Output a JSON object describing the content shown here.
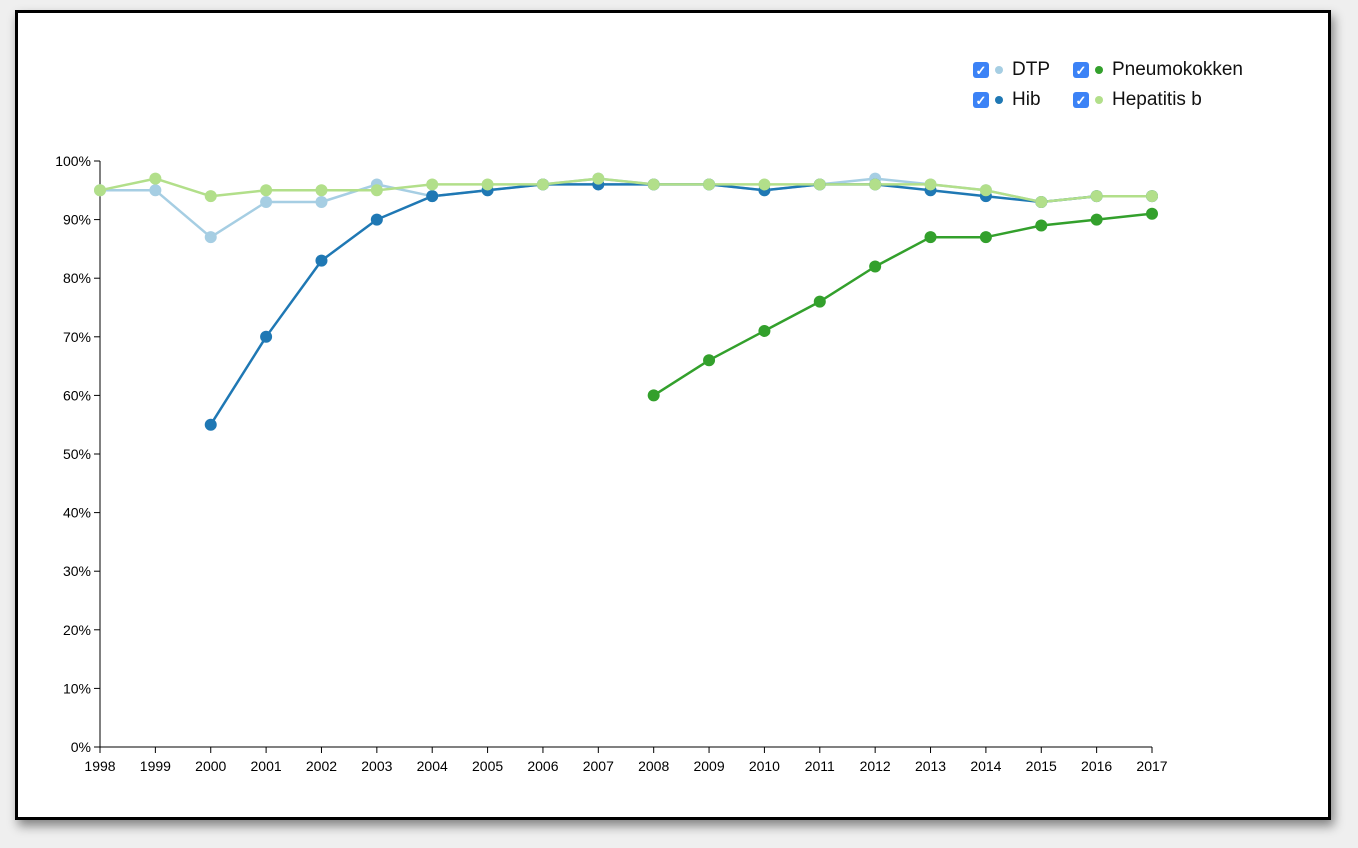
{
  "chart_data": {
    "type": "line",
    "title": "",
    "xlabel": "",
    "ylabel": "",
    "x": [
      1998,
      1999,
      2000,
      2001,
      2002,
      2003,
      2004,
      2005,
      2006,
      2007,
      2008,
      2009,
      2010,
      2011,
      2012,
      2013,
      2014,
      2015,
      2016,
      2017
    ],
    "xticks": [
      "1998",
      "1999",
      "2000",
      "2001",
      "2002",
      "2003",
      "2004",
      "2005",
      "2006",
      "2007",
      "2008",
      "2009",
      "2010",
      "2011",
      "2012",
      "2013",
      "2014",
      "2015",
      "2016",
      "2017"
    ],
    "ylim": [
      0,
      100
    ],
    "yticks": [
      "0%",
      "10%",
      "20%",
      "30%",
      "40%",
      "50%",
      "60%",
      "70%",
      "80%",
      "90%",
      "100%"
    ],
    "grid": false,
    "legend_position": "top-right",
    "series": [
      {
        "name": "DTP",
        "color": "#a6cee3",
        "values": [
          95,
          95,
          87,
          93,
          93,
          96,
          94,
          95,
          96,
          97,
          96,
          96,
          95,
          96,
          97,
          96,
          95,
          93,
          94,
          94
        ]
      },
      {
        "name": "Hib",
        "color": "#1f78b4",
        "values": [
          null,
          null,
          55,
          70,
          83,
          90,
          94,
          95,
          96,
          96,
          96,
          96,
          95,
          96,
          96,
          95,
          94,
          93,
          94,
          94
        ]
      },
      {
        "name": "Pneumokokken",
        "color": "#33a02c",
        "values": [
          null,
          null,
          null,
          null,
          null,
          null,
          null,
          null,
          null,
          null,
          60,
          66,
          71,
          76,
          82,
          87,
          87,
          89,
          90,
          91
        ]
      },
      {
        "name": "Hepatitis b",
        "color": "#b2df8a",
        "values": [
          95,
          97,
          94,
          95,
          95,
          95,
          96,
          96,
          96,
          97,
          96,
          96,
          96,
          96,
          96,
          96,
          95,
          93,
          94,
          94
        ]
      }
    ]
  },
  "legend": {
    "items": [
      {
        "label": "DTP",
        "color": "#a6cee3",
        "checked": true
      },
      {
        "label": "Pneumokokken",
        "color": "#33a02c",
        "checked": true
      },
      {
        "label": "Hib",
        "color": "#1f78b4",
        "checked": true
      },
      {
        "label": "Hepatitis b",
        "color": "#b2df8a",
        "checked": true
      }
    ],
    "checkbox_color": "#3b82f6",
    "check_icon": "checkmark-icon"
  }
}
